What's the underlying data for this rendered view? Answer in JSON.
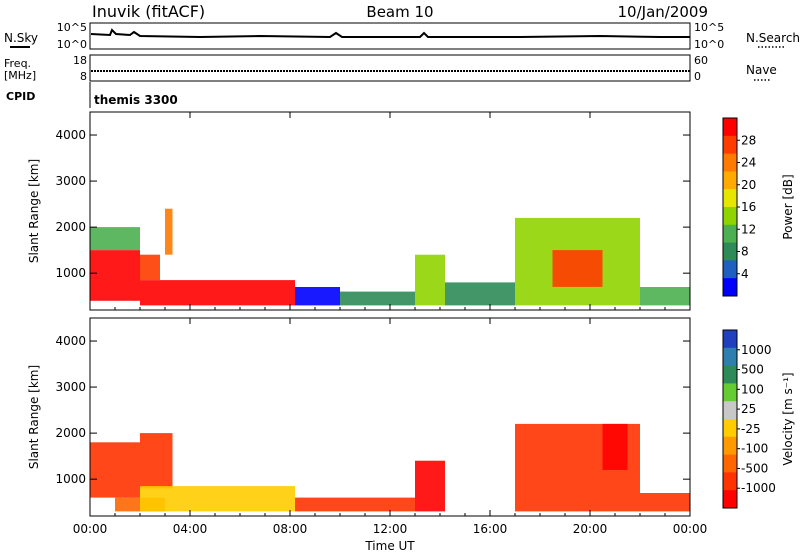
{
  "header": {
    "station": "Inuvik (fitACF)",
    "beam": "Beam 10",
    "date": "10/Jan/2009"
  },
  "panels": {
    "nsky_label": "N.Sky",
    "nsearch_label": "N.Search",
    "nsky_ticks": [
      "10^5",
      "10^0"
    ],
    "nsearch_ticks": [
      "10^5",
      "10^0"
    ],
    "freq_label_1": "Freq.",
    "freq_label_2": "[MHz]",
    "freq_ticks": [
      "18",
      "8"
    ],
    "nave_label": "Nave",
    "nave_ticks": [
      "60",
      "0"
    ],
    "cpid_label": "CPID",
    "cpid_value": "themis 3300"
  },
  "chart_data": [
    {
      "type": "heatmap",
      "title": "",
      "xlabel": "Time UT",
      "ylabel": "Slant Range [km]",
      "xlim": [
        0,
        24
      ],
      "ylim": [
        200,
        4500
      ],
      "x_ticks": [
        "00:00",
        "04:00",
        "08:00",
        "12:00",
        "16:00",
        "20:00",
        "00:00"
      ],
      "y_ticks": [
        1000,
        2000,
        3000,
        4000
      ],
      "colorbar": {
        "label": "Power [dB]",
        "ticks": [
          "28",
          "24",
          "20",
          "16",
          "12",
          "8",
          "4"
        ],
        "colors": [
          "#ff0000",
          "#ff3c00",
          "#ff7a00",
          "#ffaa00",
          "#e6e600",
          "#8fd400",
          "#4caf50",
          "#2e8b57",
          "#1f5fbf",
          "#0000ff"
        ]
      },
      "regions": [
        {
          "t0": 0.0,
          "t1": 2.0,
          "r0": 400,
          "r1": 1500,
          "value": 26
        },
        {
          "t0": 0.0,
          "t1": 2.0,
          "r0": 1500,
          "r1": 2000,
          "value": 12
        },
        {
          "t0": 2.0,
          "t1": 8.2,
          "r0": 300,
          "r1": 850,
          "value": 27
        },
        {
          "t0": 2.0,
          "t1": 2.8,
          "r0": 850,
          "r1": 1400,
          "value": 25
        },
        {
          "t0": 3.0,
          "t1": 3.3,
          "r0": 1400,
          "r1": 2400,
          "value": 22
        },
        {
          "t0": 8.2,
          "t1": 10.0,
          "r0": 300,
          "r1": 700,
          "value": 6
        },
        {
          "t0": 10.0,
          "t1": 13.0,
          "r0": 300,
          "r1": 600,
          "value": 10
        },
        {
          "t0": 13.0,
          "t1": 14.2,
          "r0": 300,
          "r1": 1400,
          "value": 16
        },
        {
          "t0": 14.2,
          "t1": 17.0,
          "r0": 300,
          "r1": 800,
          "value": 10
        },
        {
          "t0": 17.0,
          "t1": 22.0,
          "r0": 300,
          "r1": 2200,
          "value": 14
        },
        {
          "t0": 18.5,
          "t1": 20.5,
          "r0": 700,
          "r1": 1500,
          "value": 24
        },
        {
          "t0": 22.0,
          "t1": 24.0,
          "r0": 300,
          "r1": 700,
          "value": 12
        }
      ]
    },
    {
      "type": "heatmap",
      "title": "",
      "xlabel": "Time UT",
      "ylabel": "Slant Range [km]",
      "xlim": [
        0,
        24
      ],
      "ylim": [
        200,
        4500
      ],
      "x_ticks": [
        "00:00",
        "04:00",
        "08:00",
        "12:00",
        "16:00",
        "20:00",
        "00:00"
      ],
      "y_ticks": [
        1000,
        2000,
        3000,
        4000
      ],
      "colorbar": {
        "label": "Velocity [m s⁻¹]",
        "ticks": [
          "1000",
          "500",
          "100",
          "25",
          "-25",
          "-100",
          "-500",
          "-1000"
        ],
        "colors": [
          "#1f3fbf",
          "#2e7fb0",
          "#2e8b57",
          "#66cc33",
          "#c8c8c8",
          "#ffcc00",
          "#ff9900",
          "#ff6600",
          "#ff3300",
          "#ff0000"
        ]
      },
      "regions": [
        {
          "t0": 0.0,
          "t1": 2.0,
          "r0": 600,
          "r1": 1800,
          "value": -150
        },
        {
          "t0": 2.0,
          "t1": 3.3,
          "r0": 800,
          "r1": 2000,
          "value": -200
        },
        {
          "t0": 1.0,
          "t1": 3.0,
          "r0": 300,
          "r1": 600,
          "value": -40
        },
        {
          "t0": 2.0,
          "t1": 8.2,
          "r0": 300,
          "r1": 850,
          "value": 0
        },
        {
          "t0": 8.2,
          "t1": 13.0,
          "r0": 300,
          "r1": 600,
          "value": -120
        },
        {
          "t0": 13.0,
          "t1": 14.2,
          "r0": 300,
          "r1": 1400,
          "value": -300
        },
        {
          "t0": 17.0,
          "t1": 22.0,
          "r0": 300,
          "r1": 2200,
          "value": -150
        },
        {
          "t0": 20.5,
          "t1": 21.5,
          "r0": 1200,
          "r1": 2200,
          "value": -400
        },
        {
          "t0": 22.0,
          "t1": 24.0,
          "r0": 300,
          "r1": 700,
          "value": -150
        }
      ]
    }
  ]
}
